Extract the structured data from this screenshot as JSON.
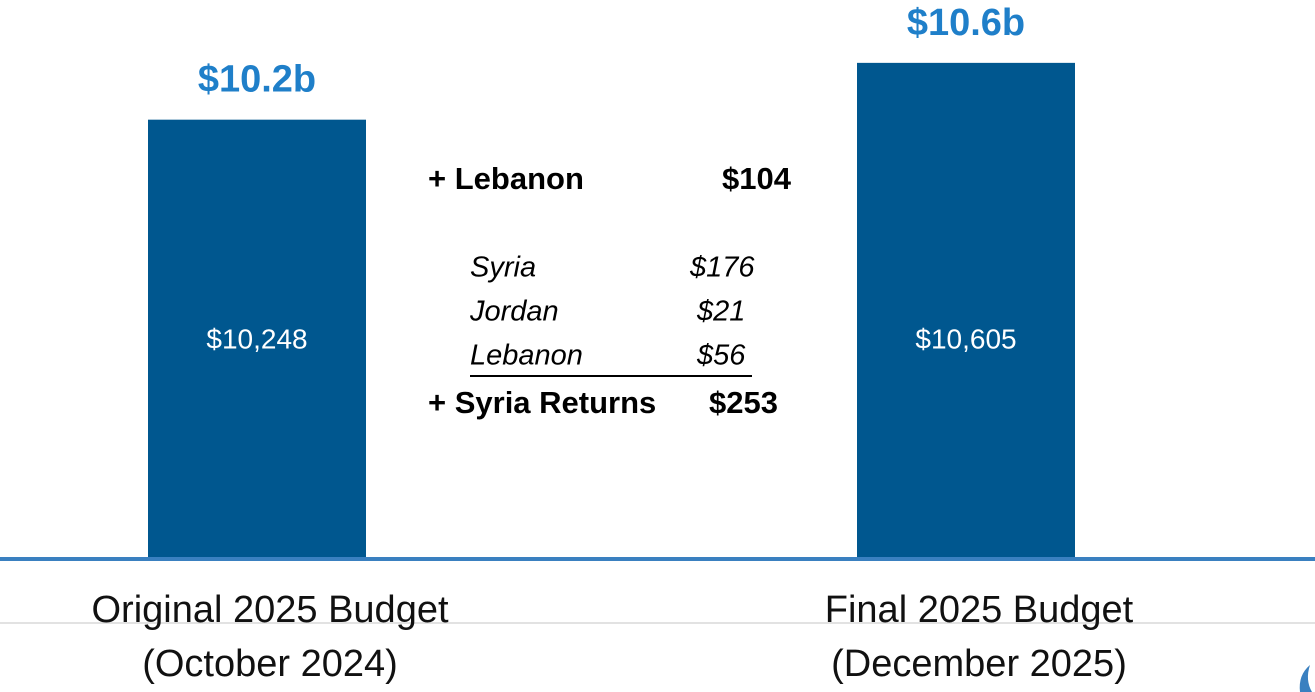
{
  "chart_data": {
    "type": "bar",
    "categories": [
      [
        "Original 2025 Budget",
        "(October 2024)"
      ],
      [
        "Final 2025 Budget",
        "(December 2025)"
      ]
    ],
    "values": [
      10248,
      10605
    ],
    "value_labels": [
      "$10,248",
      "$10,605"
    ],
    "total_labels": [
      "$10.2b",
      "$10.6b"
    ],
    "color": "#00578f",
    "total_label_color": "#1f7fc9",
    "ylim": [
      7500,
      11000
    ],
    "additions": [
      {
        "label": "+ Lebanon",
        "amount": "$104"
      }
    ],
    "breakdown": [
      {
        "label": "Syria",
        "amount": "$176"
      },
      {
        "label": "Jordan",
        "amount": "$21"
      },
      {
        "label": "Lebanon",
        "amount": "$56"
      }
    ],
    "subtotal": {
      "label": "+ Syria Returns",
      "amount": "$253"
    }
  }
}
